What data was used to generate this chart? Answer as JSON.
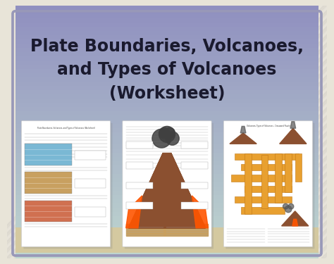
{
  "bg_stripe_color1": "#e8e4d8",
  "bg_stripe_color2": "#c8c4d8",
  "main_bg_top": "#9090c0",
  "main_bg_bottom": "#b8d8c0",
  "title_line1": "Plate Boundaries, Volcanoes,",
  "title_line2": "and Types of Volcanoes",
  "title_line3": "(Worksheet)",
  "title_color": "#1a1a2e",
  "title_fontsize": 17,
  "card_bg": "#ffffff",
  "card_border": "#cccccc",
  "bottom_strip_color": "#d4c9a0",
  "crossword_color": "#e8a030",
  "crossword_border": "#c07818"
}
